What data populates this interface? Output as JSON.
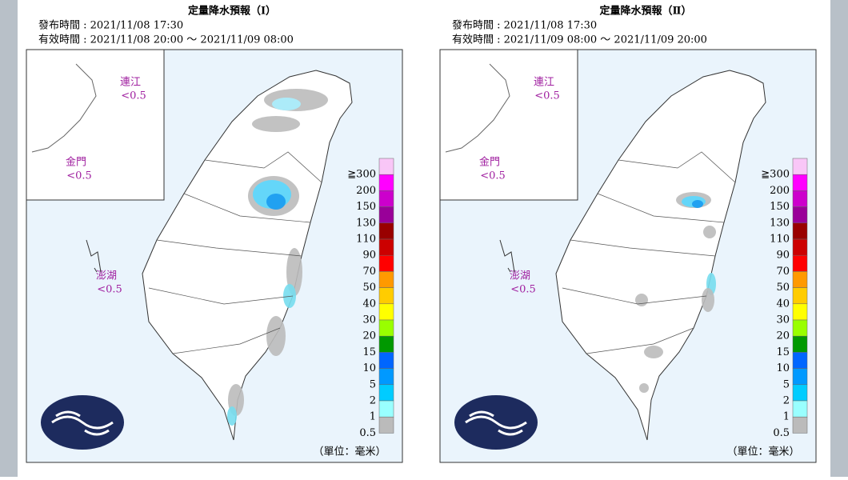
{
  "panels": [
    {
      "title": "定量降水預報（Ⅰ）",
      "issued": "發布時間 : 2021/11/08 17:30",
      "valid": "有效時間 : 2021/11/08 20:00 ～ 2021/11/09 08:00",
      "islands": [
        {
          "name": "連江",
          "value": "<0.5"
        },
        {
          "name": "金門",
          "value": "<0.5"
        },
        {
          "name": "澎湖",
          "value": "<0.5"
        }
      ]
    },
    {
      "title": "定量降水預報（Ⅱ）",
      "issued": "發布時間 : 2021/11/08 17:30",
      "valid": "有效時間 : 2021/11/09 08:00 ～ 2021/11/09 20:00",
      "islands": [
        {
          "name": "連江",
          "value": "<0.5"
        },
        {
          "name": "金門",
          "value": "<0.5"
        },
        {
          "name": "澎湖",
          "value": "<0.5"
        }
      ]
    }
  ],
  "legend": {
    "labels": [
      "≧300",
      "200",
      "150",
      "130",
      "110",
      "90",
      "70",
      "50",
      "40",
      "30",
      "20",
      "15",
      "10",
      "5",
      "2",
      "1",
      "0.5"
    ],
    "colors": [
      "#f9c6f7",
      "#ff00ff",
      "#cc00cc",
      "#990099",
      "#990000",
      "#cc0000",
      "#ff0000",
      "#ff9900",
      "#ffcc00",
      "#ffff00",
      "#99ff00",
      "#009900",
      "#0066ff",
      "#0099ff",
      "#00ccff",
      "#99ffff",
      "#bbbbbb"
    ]
  },
  "unit": "（單位：毫米）"
}
